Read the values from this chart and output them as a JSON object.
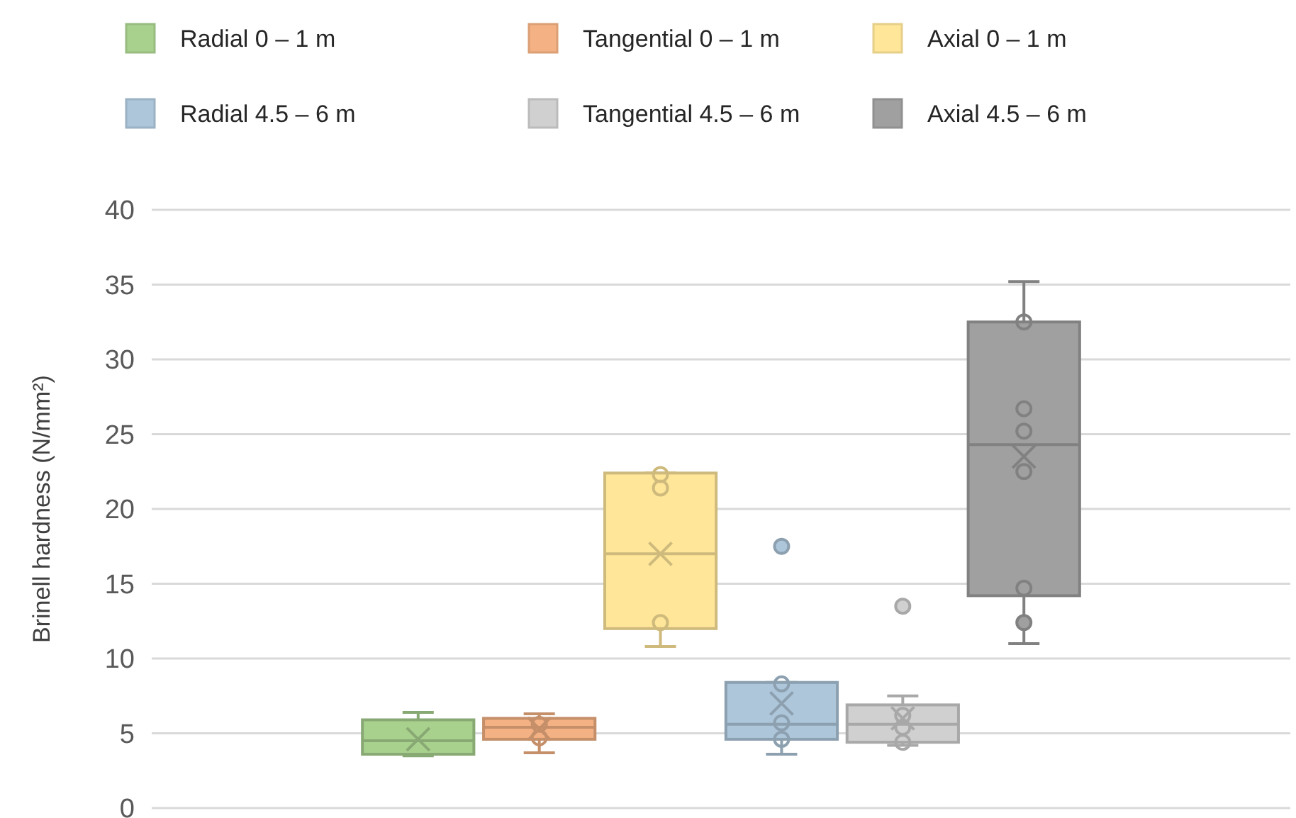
{
  "chart_data": {
    "type": "box",
    "ylabel": "Brinell hardness (N/mm²)",
    "categories": [
      null
    ],
    "ylim": [
      0,
      40
    ],
    "yticks": [
      0,
      5,
      10,
      15,
      20,
      25,
      30,
      35,
      40
    ],
    "grid": "y",
    "legend": "top",
    "tick_labels": "y",
    "series": [
      {
        "name": "Radial 0 – 1 m",
        "color": "#a9d18e",
        "boxes": [
          {
            "low": 3.5,
            "q1": 3.6,
            "median": 4.5,
            "q3": 5.9,
            "high": 6.4,
            "mean": 4.6
          }
        ]
      },
      {
        "name": "Tangential 0 – 1 m",
        "color": "#f4b183",
        "boxes": [
          {
            "low": 3.7,
            "q1": 4.6,
            "median": 5.4,
            "q3": 6.0,
            "high": 6.3,
            "mean": 5.3,
            "outliers": [
              5.6,
              4.7
            ]
          }
        ]
      },
      {
        "name": "Axial 0 – 1 m",
        "color": "#ffe699",
        "boxes": [
          {
            "low": 10.8,
            "q1": 12.0,
            "median": 17.0,
            "q3": 22.4,
            "high": 22.4,
            "mean": 17.0,
            "outliers": [
              22.3,
              21.4,
              12.4
            ]
          }
        ]
      },
      {
        "name": "Radial 4.5 – 6 m",
        "color": "#adc6da",
        "boxes": [
          {
            "low": 3.6,
            "q1": 4.6,
            "median": 5.6,
            "q3": 8.4,
            "high": 8.4,
            "mean": 7.0,
            "outliers": [
              17.5,
              8.3,
              5.7,
              4.6
            ]
          }
        ]
      },
      {
        "name": "Tangential 4.5 – 6 m",
        "color": "#d0d0d0",
        "boxes": [
          {
            "low": 4.2,
            "q1": 4.4,
            "median": 5.6,
            "q3": 6.9,
            "high": 7.5,
            "mean": 6.0,
            "outliers": [
              13.5,
              6.2,
              5.4,
              4.4
            ]
          }
        ]
      },
      {
        "name": "Axial 4.5 – 6 m",
        "color": "#a0a0a0",
        "boxes": [
          {
            "low": 11.0,
            "q1": 14.2,
            "median": 24.3,
            "q3": 32.5,
            "high": 35.2,
            "mean": 23.5,
            "outliers": [
              32.5,
              26.7,
              25.2,
              22.5,
              14.7,
              12.4
            ]
          }
        ]
      }
    ]
  }
}
